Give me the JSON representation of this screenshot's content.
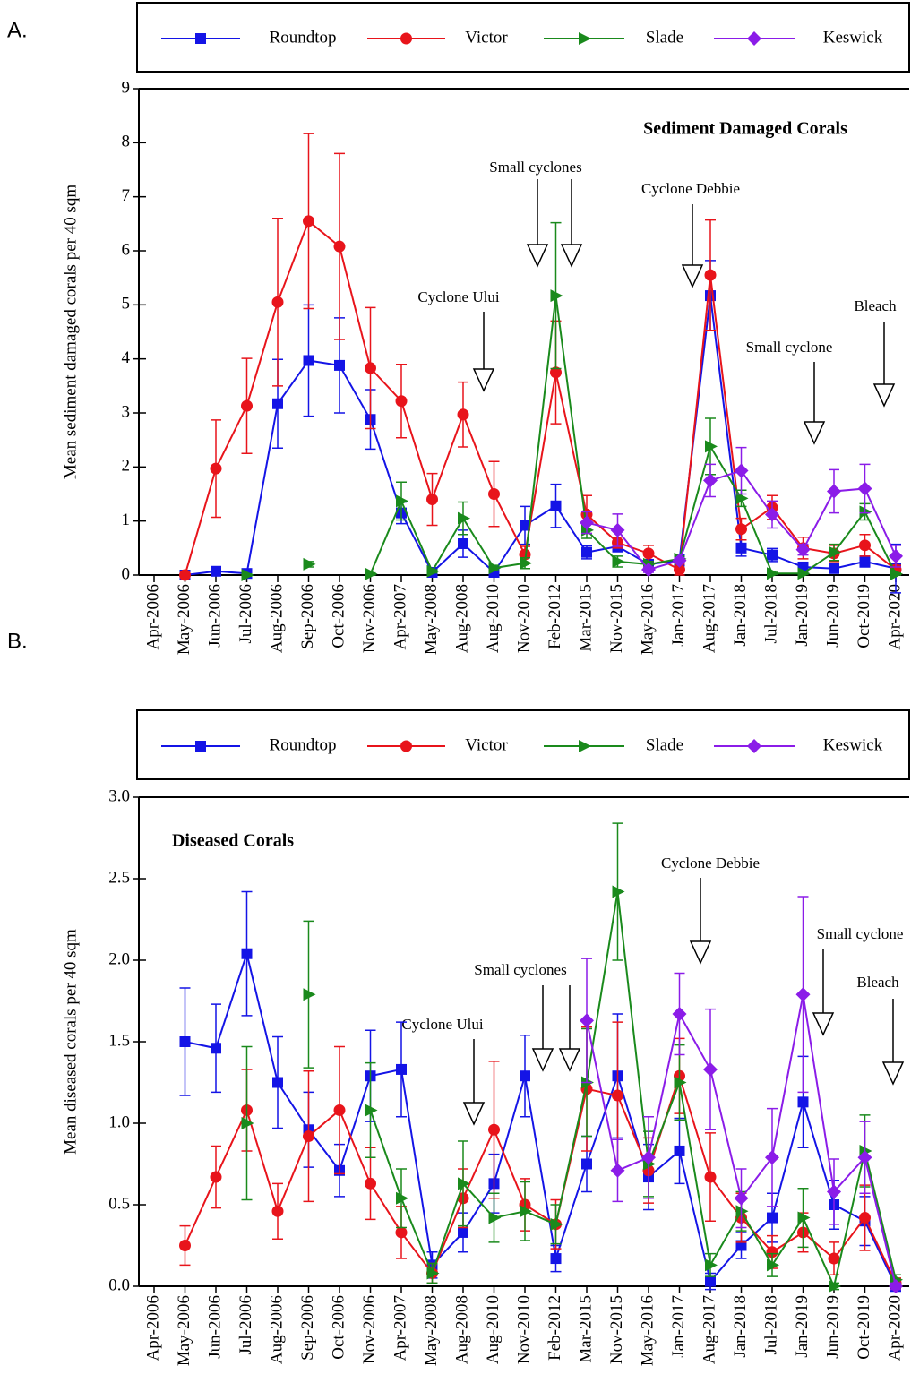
{
  "chart_data": [
    {
      "type": "line",
      "panel_label": "A.",
      "inset_title": "Sediment Damaged Corals",
      "y_label": "Mean sediment damaged corals per 40 sqm",
      "annotations": [
        "Small cyclones",
        "Cyclone Ului",
        "Cyclone Debbie",
        "Small cyclone",
        "Bleach"
      ],
      "categories": [
        "Apr-2006",
        "May-2006",
        "Jun-2006",
        "Jul-2006",
        "Aug-2006",
        "Sep-2006",
        "Oct-2006",
        "Nov-2006",
        "Apr-2007",
        "May-2008",
        "Aug-2008",
        "Aug-2010",
        "Nov-2010",
        "Feb-2012",
        "Mar-2015",
        "Nov-2015",
        "May-2016",
        "Jan-2017",
        "Aug-2017",
        "Jan-2018",
        "Jul-2018",
        "Jan-2019",
        "Jun-2019",
        "Oct-2019",
        "Apr-2020"
      ],
      "ylim": [
        0,
        9
      ],
      "yticks": [
        0,
        1,
        2,
        3,
        4,
        5,
        6,
        7,
        8,
        9
      ],
      "series": [
        {
          "name": "Roundtop",
          "color": "#1414e6",
          "marker": "square",
          "values": [
            null,
            0,
            0.07,
            0.03,
            3.17,
            3.97,
            3.88,
            2.88,
            1.15,
            0.05,
            0.58,
            0.05,
            0.92,
            1.28,
            0.42,
            0.53,
            0.2,
            0.27,
            5.17,
            0.5,
            0.37,
            0.15,
            0.12,
            0.25,
            0.12
          ],
          "errors": [
            null,
            0.02,
            0.05,
            0.02,
            0.82,
            1.03,
            0.88,
            0.55,
            0.2,
            0.03,
            0.25,
            0.05,
            0.35,
            0.4,
            0.12,
            0.1,
            0.05,
            0.1,
            0.65,
            0.15,
            0.12,
            0.08,
            0.08,
            0.1,
            0.45
          ]
        },
        {
          "name": "Victor",
          "color": "#e8141b",
          "marker": "circle",
          "values": [
            null,
            0,
            1.97,
            3.13,
            5.05,
            6.55,
            6.08,
            3.83,
            3.22,
            1.4,
            2.97,
            1.5,
            0.38,
            3.75,
            1.12,
            0.6,
            0.4,
            0.1,
            5.55,
            0.85,
            1.25,
            0.5,
            0.4,
            0.55,
            0.1
          ],
          "errors": [
            null,
            0.02,
            0.9,
            0.88,
            1.55,
            1.62,
            1.72,
            1.12,
            0.68,
            0.48,
            0.6,
            0.6,
            0.15,
            0.95,
            0.35,
            0.1,
            0.15,
            0.1,
            1.02,
            0.2,
            0.22,
            0.2,
            0.15,
            0.2,
            0.08
          ]
        },
        {
          "name": "Slade",
          "color": "#1a8a1c",
          "marker": "triangle-right",
          "values": [
            null,
            null,
            null,
            0,
            null,
            0.2,
            null,
            0.02,
            1.37,
            0.07,
            1.05,
            0.13,
            0.22,
            5.17,
            0.83,
            0.25,
            0.2,
            0.3,
            2.38,
            1.42,
            0.03,
            0.03,
            0.42,
            1.17,
            0.02
          ],
          "errors": [
            null,
            null,
            null,
            0.02,
            null,
            0.05,
            null,
            0.02,
            0.35,
            0.03,
            0.3,
            0.05,
            0.1,
            1.35,
            0.15,
            0.1,
            0.05,
            0.05,
            0.52,
            0.15,
            0.02,
            0.02,
            0.15,
            0.15,
            0.02
          ]
        },
        {
          "name": "Keswick",
          "color": "#8b1ce8",
          "marker": "diamond",
          "values": [
            null,
            null,
            null,
            null,
            null,
            null,
            null,
            null,
            null,
            null,
            null,
            null,
            null,
            null,
            0.97,
            0.83,
            0.1,
            0.27,
            1.75,
            1.93,
            1.12,
            0.47,
            1.55,
            1.6,
            0.35
          ],
          "errors": [
            null,
            null,
            null,
            null,
            null,
            null,
            null,
            null,
            null,
            null,
            null,
            null,
            null,
            null,
            0.2,
            0.3,
            0.05,
            0.05,
            0.3,
            0.43,
            0.25,
            0.1,
            0.4,
            0.45,
            0.2
          ]
        }
      ]
    },
    {
      "type": "line",
      "panel_label": "B.",
      "inset_title": "Diseased Corals",
      "y_label": "Mean diseased corals per 40 sqm",
      "annotations": [
        "Small cyclones",
        "Cyclone Ului",
        "Cyclone Debbie",
        "Small cyclone",
        "Bleach"
      ],
      "categories": [
        "Apr-2006",
        "May-2006",
        "Jun-2006",
        "Jul-2006",
        "Aug-2006",
        "Sep-2006",
        "Oct-2006",
        "Nov-2006",
        "Apr-2007",
        "May-2008",
        "Aug-2008",
        "Aug-2010",
        "Nov-2010",
        "Feb-2012",
        "Mar-2015",
        "Nov-2015",
        "May-2016",
        "Jan-2017",
        "Aug-2017",
        "Jan-2018",
        "Jul-2018",
        "Jan-2019",
        "Jun-2019",
        "Oct-2019",
        "Apr-2020"
      ],
      "ylim": [
        0,
        3
      ],
      "yticks": [
        {
          "value": 0,
          "label": "0.0"
        },
        0.5,
        {
          "value": 1,
          "label": "1.0"
        },
        1.5,
        {
          "value": 2,
          "label": "2.0"
        },
        2.5,
        {
          "value": 3,
          "label": "3.0"
        }
      ],
      "series": [
        {
          "name": "Roundtop",
          "color": "#1414e6",
          "marker": "square",
          "values": [
            null,
            1.5,
            1.46,
            2.04,
            1.25,
            0.96,
            0.71,
            1.29,
            1.33,
            0.13,
            0.33,
            0.63,
            1.29,
            0.17,
            0.75,
            1.29,
            0.67,
            0.83,
            0.03,
            0.25,
            0.42,
            1.13,
            0.5,
            0.4,
            0
          ],
          "errors": [
            null,
            0.33,
            0.27,
            0.38,
            0.28,
            0.23,
            0.16,
            0.28,
            0.29,
            0.08,
            0.12,
            0.18,
            0.25,
            0.08,
            0.17,
            0.38,
            0.2,
            0.2,
            0.05,
            0.08,
            0.15,
            0.28,
            0.15,
            0.15,
            0.03
          ]
        },
        {
          "name": "Victor",
          "color": "#e8141b",
          "marker": "circle",
          "values": [
            null,
            0.25,
            0.67,
            1.08,
            0.46,
            0.92,
            1.08,
            0.63,
            0.33,
            0.08,
            0.54,
            0.96,
            0.5,
            0.38,
            1.21,
            1.17,
            0.71,
            1.29,
            0.67,
            0.42,
            0.21,
            0.33,
            0.17,
            0.42,
            0.02
          ],
          "errors": [
            null,
            0.12,
            0.19,
            0.25,
            0.17,
            0.4,
            0.39,
            0.22,
            0.16,
            0.06,
            0.18,
            0.42,
            0.16,
            0.15,
            0.38,
            0.45,
            0.2,
            0.23,
            0.27,
            0.15,
            0.1,
            0.12,
            0.1,
            0.2,
            0.03
          ]
        },
        {
          "name": "Slade",
          "color": "#1a8a1c",
          "marker": "triangle-right",
          "values": [
            null,
            null,
            null,
            1,
            null,
            1.79,
            null,
            1.08,
            0.54,
            0.08,
            0.63,
            0.42,
            0.46,
            0.38,
            1.25,
            2.42,
            0.75,
            1.25,
            0.13,
            0.46,
            0.13,
            0.42,
            0,
            0.83,
            0.04
          ],
          "errors": [
            null,
            null,
            null,
            0.47,
            null,
            0.45,
            null,
            0.29,
            0.18,
            0.06,
            0.26,
            0.15,
            0.18,
            0.12,
            0.33,
            0.42,
            0.2,
            0.23,
            0.07,
            0.12,
            0.07,
            0.18,
            0.02,
            0.22,
            0.03
          ]
        },
        {
          "name": "Keswick",
          "color": "#8b1ce8",
          "marker": "diamond",
          "values": [
            null,
            null,
            null,
            null,
            null,
            null,
            null,
            null,
            null,
            null,
            null,
            null,
            null,
            null,
            1.63,
            0.71,
            0.79,
            1.67,
            1.33,
            0.54,
            0.79,
            1.79,
            0.58,
            0.79,
            0
          ],
          "errors": [
            null,
            null,
            null,
            null,
            null,
            null,
            null,
            null,
            null,
            null,
            null,
            null,
            null,
            null,
            0.38,
            0.19,
            0.25,
            0.25,
            0.37,
            0.18,
            0.3,
            0.6,
            0.2,
            0.22,
            0.02
          ]
        }
      ]
    }
  ]
}
